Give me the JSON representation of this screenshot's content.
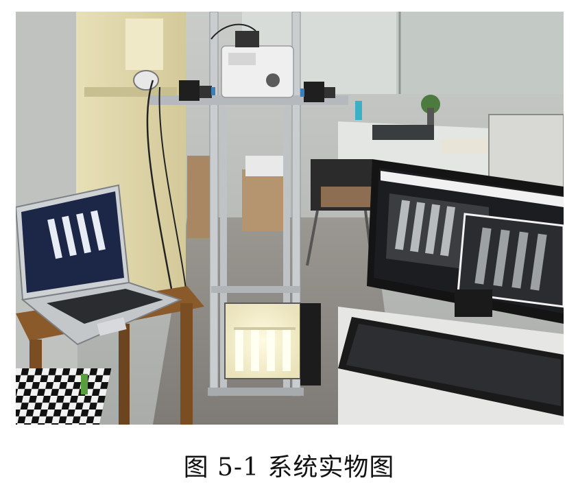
{
  "figure": {
    "caption": "图 5-1 系统实物图"
  }
}
